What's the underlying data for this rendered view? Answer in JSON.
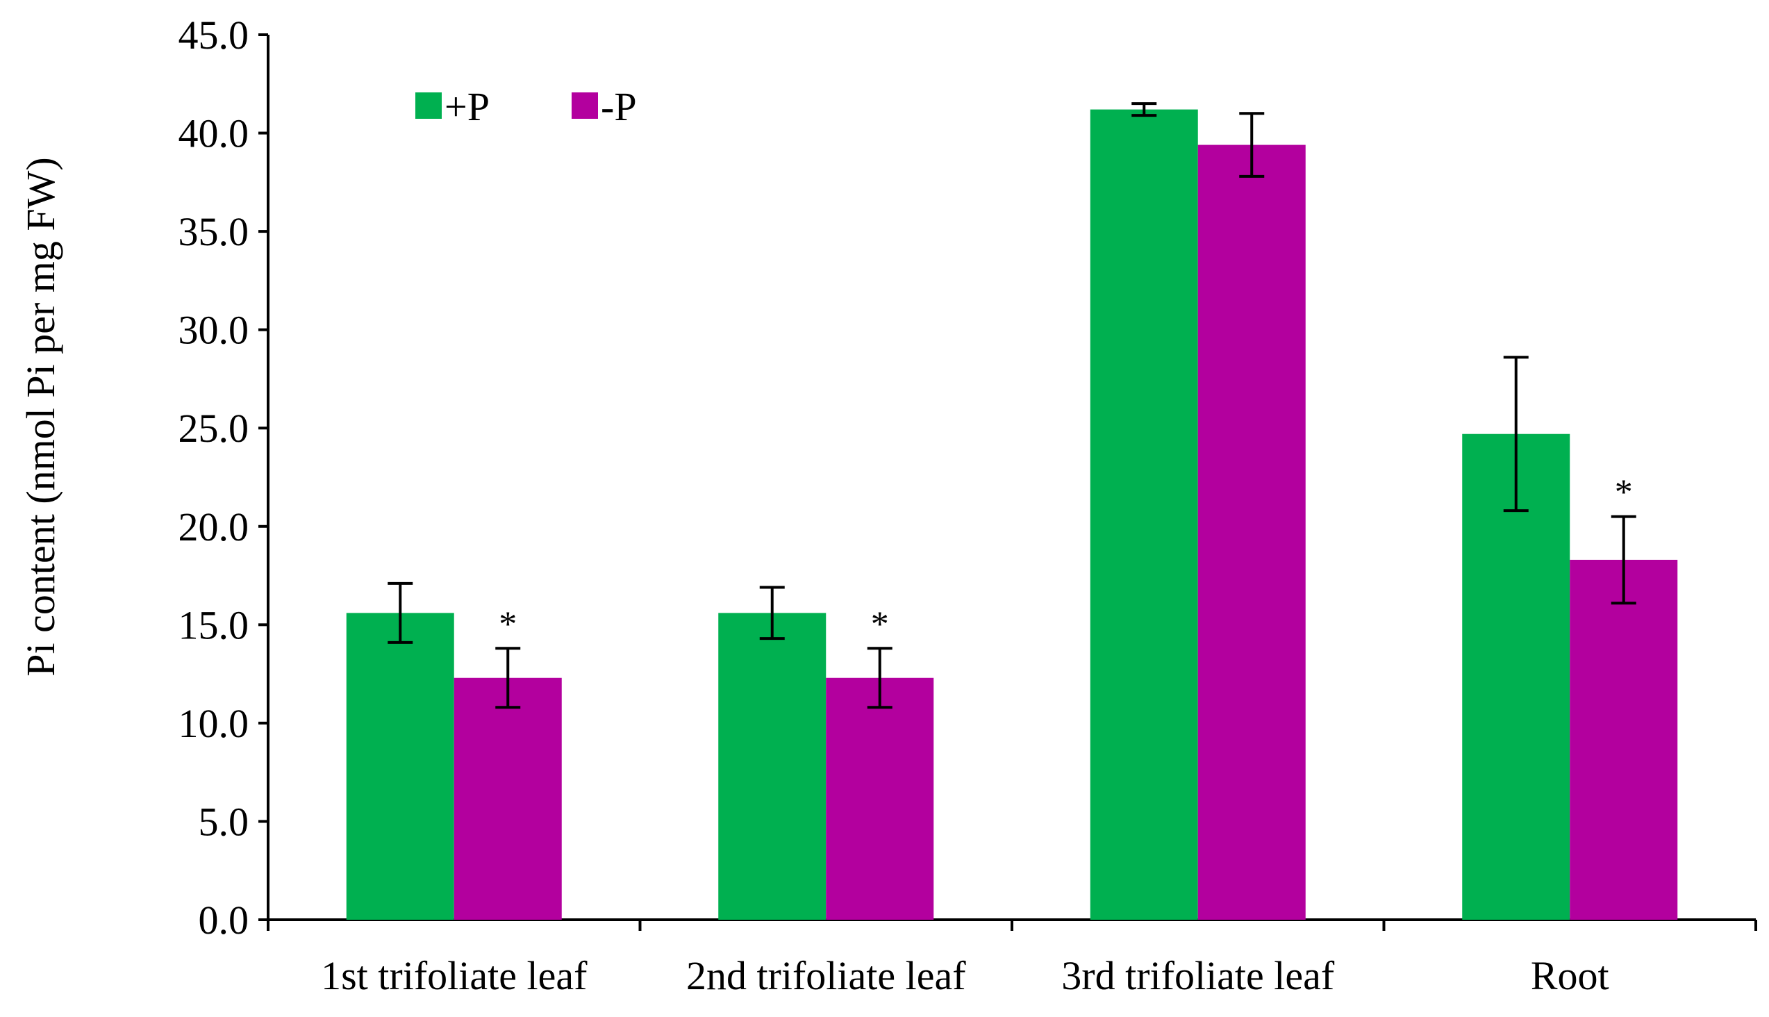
{
  "chart_data": {
    "type": "bar",
    "title": "",
    "xlabel": "",
    "ylabel": "Pi content (nmol Pi per mg FW)",
    "ylim": [
      0,
      45
    ],
    "ytick_step": 5,
    "ytick_labels": [
      "0.0",
      "5.0",
      "10.0",
      "15.0",
      "20.0",
      "25.0",
      "30.0",
      "35.0",
      "40.0",
      "45.0"
    ],
    "categories": [
      "1st trifoliate leaf",
      "2nd trifoliate leaf",
      "3rd trifoliate leaf",
      "Root"
    ],
    "series": [
      {
        "name": "+P",
        "color": "#00b050",
        "values": [
          15.6,
          15.6,
          41.2,
          24.7
        ],
        "errors": [
          1.5,
          1.3,
          0.3,
          3.9
        ],
        "significant": [
          false,
          false,
          false,
          false
        ]
      },
      {
        "name": "-P",
        "color": "#b3009e",
        "values": [
          12.3,
          12.3,
          39.4,
          18.3
        ],
        "errors": [
          1.5,
          1.5,
          1.6,
          2.2
        ],
        "significant": [
          true,
          true,
          false,
          true
        ]
      }
    ],
    "significance_marker": "*",
    "grid": false,
    "legend_position": "top-left"
  }
}
